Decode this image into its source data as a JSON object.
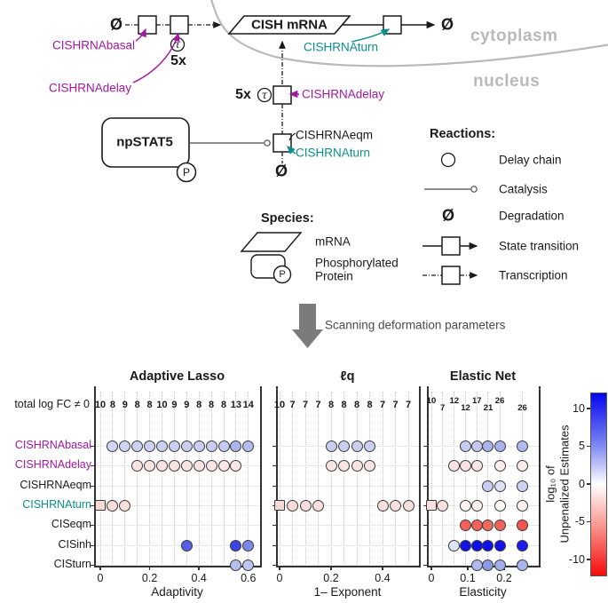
{
  "diagram": {
    "labels": {
      "phi": "Ø",
      "tau": "τ",
      "p": "P",
      "five_x": "5x",
      "cish_mrna": "CISH mRNA",
      "npstat5": "npSTAT5",
      "cytoplasm": "cytoplasm",
      "nucleus": "nucleus",
      "basal": "CISHRNAbasal",
      "delay_cyto": "CISHRNAdelay",
      "turn_cyto": "CISHRNAturn",
      "delay_nuc": "CISHRNAdelay",
      "eqm_nuc": "CISHRNAeqm",
      "turn_nuc": "CISHRNAturn"
    },
    "reactions_legend": {
      "title": "Reactions:",
      "items": [
        "Delay chain",
        "Catalysis",
        "Degradation",
        "State transition",
        "Transcription"
      ]
    },
    "species_legend": {
      "title": "Species:",
      "mrna": "mRNA",
      "phospho_line1": "Phosphorylated",
      "phospho_line2": "Protein"
    },
    "scan_caption": "Scanning deformation parameters",
    "colors": {
      "magenta": "#a118a1",
      "teal": "#0d8d8d",
      "membrane_gray": "#b9b9b9",
      "arrow_gray": "#7b7b7b"
    }
  },
  "charts": {
    "counts_label": "total log FC ≠ 0",
    "row_labels": [
      "CISHRNAbasal",
      "CISHRNAdelay",
      "CISHRNAeqm",
      "CISHRNAturn",
      "CISeqm",
      "CISinh",
      "CISturn"
    ],
    "row_label_colors": [
      "#a118a1",
      "#a118a1",
      "#1a1a1a",
      "#0d8d8d",
      "#1a1a1a",
      "#1a1a1a",
      "#1a1a1a"
    ],
    "colorbar": {
      "ticks": [
        10,
        5,
        0,
        -5,
        -10
      ],
      "label_line1": "log₁₀ of",
      "label_line2": "Unpenalized Estimates",
      "gradient": [
        [
          "#0606ee",
          "0%"
        ],
        [
          "#7b85f2",
          "28%"
        ],
        [
          "#ffffff",
          "50%"
        ],
        [
          "#f9958e",
          "73%"
        ],
        [
          "#f30b0b",
          "100%"
        ]
      ]
    }
  },
  "chart_data": [
    {
      "type": "scatter",
      "title": "Adaptive Lasso",
      "xlabel": "Adaptivity",
      "x_tick_labels": [
        "0",
        "0.2",
        "0.4",
        "0.6"
      ],
      "columns": [
        0,
        0.05,
        0.1,
        0.15,
        0.2,
        0.25,
        0.3,
        0.35,
        0.4,
        0.45,
        0.5,
        0.55,
        0.6
      ],
      "counts_nonzero_logFC": [
        10,
        8,
        9,
        8,
        8,
        10,
        9,
        9,
        8,
        8,
        8,
        13,
        14
      ],
      "points": [
        {
          "row": "CISHRNAbasal",
          "x": 0.05,
          "marker": "circle",
          "color": "#d2d6f4"
        },
        {
          "row": "CISHRNAbasal",
          "x": 0.1,
          "marker": "circle",
          "color": "#cfd4f3"
        },
        {
          "row": "CISHRNAbasal",
          "x": 0.15,
          "marker": "circle",
          "color": "#cdd2f3"
        },
        {
          "row": "CISHRNAbasal",
          "x": 0.2,
          "marker": "circle",
          "color": "#ccd1f2"
        },
        {
          "row": "CISHRNAbasal",
          "x": 0.25,
          "marker": "circle",
          "color": "#cbd0f2"
        },
        {
          "row": "CISHRNAbasal",
          "x": 0.3,
          "marker": "circle",
          "color": "#cbd0f2"
        },
        {
          "row": "CISHRNAbasal",
          "x": 0.35,
          "marker": "circle",
          "color": "#cacff2"
        },
        {
          "row": "CISHRNAbasal",
          "x": 0.4,
          "marker": "circle",
          "color": "#c9cef2"
        },
        {
          "row": "CISHRNAbasal",
          "x": 0.45,
          "marker": "circle",
          "color": "#c7ccf1"
        },
        {
          "row": "CISHRNAbasal",
          "x": 0.5,
          "marker": "circle",
          "color": "#c5cbf1"
        },
        {
          "row": "CISHRNAbasal",
          "x": 0.55,
          "marker": "circle",
          "color": "#aab4ed"
        },
        {
          "row": "CISHRNAbasal",
          "x": 0.6,
          "marker": "circle",
          "color": "#b3bcef"
        },
        {
          "row": "CISHRNAdelay",
          "x": 0.15,
          "marker": "circle",
          "color": "#fae4e2"
        },
        {
          "row": "CISHRNAdelay",
          "x": 0.2,
          "marker": "circle",
          "color": "#fae4e2"
        },
        {
          "row": "CISHRNAdelay",
          "x": 0.25,
          "marker": "circle",
          "color": "#f9e3e1"
        },
        {
          "row": "CISHRNAdelay",
          "x": 0.3,
          "marker": "circle",
          "color": "#f9e3e1"
        },
        {
          "row": "CISHRNAdelay",
          "x": 0.35,
          "marker": "circle",
          "color": "#fae4e2"
        },
        {
          "row": "CISHRNAdelay",
          "x": 0.4,
          "marker": "circle",
          "color": "#fae4e2"
        },
        {
          "row": "CISHRNAdelay",
          "x": 0.45,
          "marker": "circle",
          "color": "#fae5e3"
        },
        {
          "row": "CISHRNAdelay",
          "x": 0.5,
          "marker": "circle",
          "color": "#fbe6e4"
        },
        {
          "row": "CISHRNAdelay",
          "x": 0.55,
          "marker": "circle",
          "color": "#fbe8e6"
        },
        {
          "row": "CISHRNAturn",
          "x": 0,
          "marker": "square",
          "color": "#f6dad8"
        },
        {
          "row": "CISHRNAturn",
          "x": 0.05,
          "marker": "circle",
          "color": "#f8dcda"
        },
        {
          "row": "CISHRNAturn",
          "x": 0.1,
          "marker": "circle",
          "color": "#f8dedc"
        },
        {
          "row": "CISinh",
          "x": 0.35,
          "marker": "circle",
          "color": "#5560e5"
        },
        {
          "row": "CISinh",
          "x": 0.55,
          "marker": "circle",
          "color": "#3a46e2"
        },
        {
          "row": "CISinh",
          "x": 0.6,
          "marker": "circle",
          "color": "#7b87ea"
        },
        {
          "row": "CISturn",
          "x": 0.55,
          "marker": "circle",
          "color": "#b5bef0"
        },
        {
          "row": "CISturn",
          "x": 0.6,
          "marker": "circle",
          "color": "#bdc5f1"
        }
      ]
    },
    {
      "type": "scatter",
      "title": "ℓq",
      "xlabel": "1– Exponent",
      "x_tick_labels": [
        "0",
        "0.2",
        "0.4"
      ],
      "columns": [
        0,
        0.05,
        0.1,
        0.15,
        0.2,
        0.25,
        0.3,
        0.35,
        0.4,
        0.45,
        0.5
      ],
      "counts_nonzero_logFC": [
        10,
        7,
        7,
        7,
        8,
        8,
        8,
        8,
        7,
        7,
        7
      ],
      "points": [
        {
          "row": "CISHRNAbasal",
          "x": 0.2,
          "marker": "circle",
          "color": "#c9cef2"
        },
        {
          "row": "CISHRNAbasal",
          "x": 0.25,
          "marker": "circle",
          "color": "#c9cef2"
        },
        {
          "row": "CISHRNAbasal",
          "x": 0.3,
          "marker": "circle",
          "color": "#cacff2"
        },
        {
          "row": "CISHRNAbasal",
          "x": 0.35,
          "marker": "circle",
          "color": "#cbd0f2"
        },
        {
          "row": "CISHRNAdelay",
          "x": 0.2,
          "marker": "circle",
          "color": "#fae4e2"
        },
        {
          "row": "CISHRNAdelay",
          "x": 0.25,
          "marker": "circle",
          "color": "#fae4e2"
        },
        {
          "row": "CISHRNAdelay",
          "x": 0.3,
          "marker": "circle",
          "color": "#fae4e2"
        },
        {
          "row": "CISHRNAdelay",
          "x": 0.35,
          "marker": "circle",
          "color": "#fae4e2"
        },
        {
          "row": "CISHRNAturn",
          "x": 0,
          "marker": "square",
          "color": "#f6dad8"
        },
        {
          "row": "CISHRNAturn",
          "x": 0.05,
          "marker": "circle",
          "color": "#f8dcda"
        },
        {
          "row": "CISHRNAturn",
          "x": 0.1,
          "marker": "circle",
          "color": "#f8dedc"
        },
        {
          "row": "CISHRNAturn",
          "x": 0.15,
          "marker": "circle",
          "color": "#f8dedc"
        },
        {
          "row": "CISHRNAturn",
          "x": 0.4,
          "marker": "circle",
          "color": "#f9e0de"
        },
        {
          "row": "CISHRNAturn",
          "x": 0.45,
          "marker": "circle",
          "color": "#f9e0de"
        },
        {
          "row": "CISHRNAturn",
          "x": 0.5,
          "marker": "circle",
          "color": "#f9e0de"
        }
      ]
    },
    {
      "type": "scatter",
      "title": "Elastic Net",
      "xlabel": "Elasticity",
      "x_tick_labels": [
        "0",
        "0.1",
        "0.2"
      ],
      "columns": [
        0,
        0.031,
        0.063,
        0.094,
        0.125,
        0.156,
        0.188,
        0.25
      ],
      "counts_nonzero_logFC": [
        10,
        7,
        12,
        12,
        17,
        21,
        26,
        26
      ],
      "points": [
        {
          "row": "CISHRNAbasal",
          "x": 0.094,
          "marker": "circle",
          "color": "#c6ccf1"
        },
        {
          "row": "CISHRNAbasal",
          "x": 0.125,
          "marker": "circle",
          "color": "#c2c8f0"
        },
        {
          "row": "CISHRNAbasal",
          "x": 0.156,
          "marker": "circle",
          "color": "#a9b3ec"
        },
        {
          "row": "CISHRNAbasal",
          "x": 0.188,
          "marker": "circle",
          "color": "#a9b3ec"
        },
        {
          "row": "CISHRNAbasal",
          "x": 0.25,
          "marker": "circle",
          "color": "#b0baee"
        },
        {
          "row": "CISHRNAdelay",
          "x": 0.063,
          "marker": "circle",
          "color": "#fae3e1"
        },
        {
          "row": "CISHRNAdelay",
          "x": 0.094,
          "marker": "circle",
          "color": "#fae3e1"
        },
        {
          "row": "CISHRNAdelay",
          "x": 0.125,
          "marker": "circle",
          "color": "#fbe6e4"
        },
        {
          "row": "CISHRNAdelay",
          "x": 0.188,
          "marker": "circle",
          "color": "#fdeeec"
        },
        {
          "row": "CISHRNAdelay",
          "x": 0.25,
          "marker": "circle",
          "color": "#fceae8"
        },
        {
          "row": "CISHRNAeqm",
          "x": 0.156,
          "marker": "circle",
          "color": "#c8cef1"
        },
        {
          "row": "CISHRNAeqm",
          "x": 0.188,
          "marker": "circle",
          "color": "#dde1f7"
        },
        {
          "row": "CISHRNAeqm",
          "x": 0.25,
          "marker": "circle",
          "color": "#ccd2f2"
        },
        {
          "row": "CISHRNAturn",
          "x": 0,
          "marker": "square",
          "color": "#f8dedc"
        },
        {
          "row": "CISHRNAturn",
          "x": 0.031,
          "marker": "circle",
          "color": "#f9e0de"
        },
        {
          "row": "CISHRNAturn",
          "x": 0.094,
          "marker": "circle",
          "color": "#fef4f3"
        },
        {
          "row": "CISHRNAturn",
          "x": 0.125,
          "marker": "circle",
          "color": "#fef2f1"
        },
        {
          "row": "CISHRNAturn",
          "x": 0.188,
          "marker": "circle",
          "color": "#fff7f6"
        },
        {
          "row": "CISHRNAturn",
          "x": 0.25,
          "marker": "circle",
          "color": "#fdf1f0"
        },
        {
          "row": "CISeqm",
          "x": 0.094,
          "marker": "circle",
          "color": "#f4615a"
        },
        {
          "row": "CISeqm",
          "x": 0.125,
          "marker": "circle",
          "color": "#f4615a"
        },
        {
          "row": "CISeqm",
          "x": 0.156,
          "marker": "circle",
          "color": "#f3695f"
        },
        {
          "row": "CISeqm",
          "x": 0.188,
          "marker": "circle",
          "color": "#f4615a"
        },
        {
          "row": "CISeqm",
          "x": 0.25,
          "marker": "circle",
          "color": "#f5544c"
        },
        {
          "row": "CISinh",
          "x": 0.063,
          "marker": "circle",
          "color": "#dfe3f8"
        },
        {
          "row": "CISinh",
          "x": 0.094,
          "marker": "circle",
          "color": "#1313e8"
        },
        {
          "row": "CISinh",
          "x": 0.125,
          "marker": "circle",
          "color": "#1010e6"
        },
        {
          "row": "CISinh",
          "x": 0.156,
          "marker": "circle",
          "color": "#0f0fe6"
        },
        {
          "row": "CISinh",
          "x": 0.188,
          "marker": "circle",
          "color": "#1212e7"
        },
        {
          "row": "CISinh",
          "x": 0.25,
          "marker": "circle",
          "color": "#1b1be9"
        },
        {
          "row": "CISturn",
          "x": 0.125,
          "marker": "circle",
          "color": "#aeb9ee"
        },
        {
          "row": "CISturn",
          "x": 0.156,
          "marker": "circle",
          "color": "#8d9aea"
        },
        {
          "row": "CISturn",
          "x": 0.188,
          "marker": "circle",
          "color": "#a3aeec"
        },
        {
          "row": "CISturn",
          "x": 0.25,
          "marker": "circle",
          "color": "#aab5ed"
        }
      ]
    }
  ]
}
